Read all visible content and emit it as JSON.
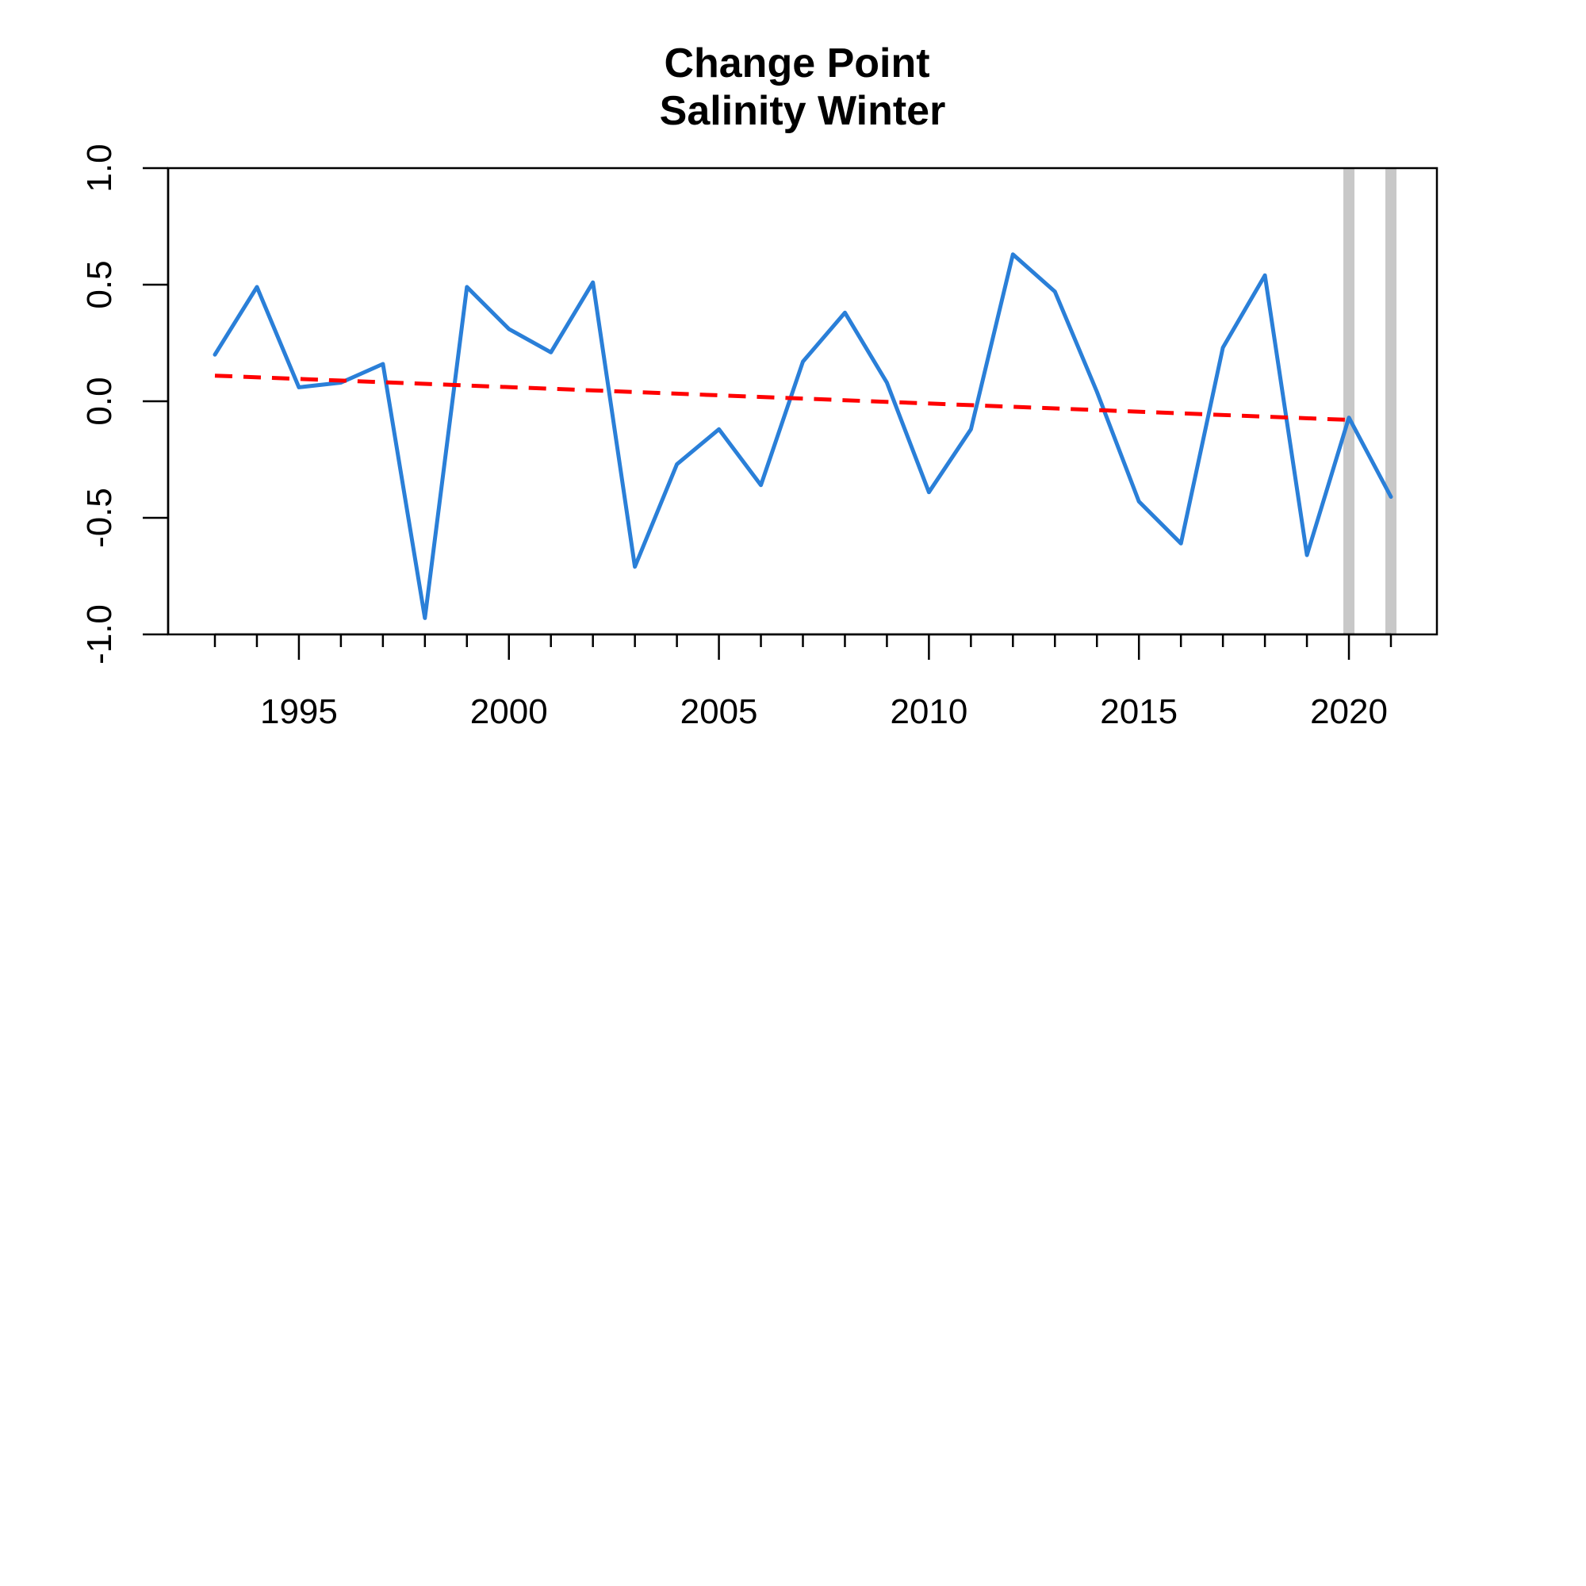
{
  "chart_data": {
    "type": "line",
    "title": "Change Point",
    "subtitle": "Salinity Winter",
    "xlabel": "",
    "ylabel": "",
    "xlim": [
      1992,
      2022.2
    ],
    "ylim": [
      -1.0,
      1.0
    ],
    "x_ticks": [
      1993,
      1994,
      1995,
      1996,
      1997,
      1998,
      1999,
      2000,
      2001,
      2002,
      2003,
      2004,
      2005,
      2006,
      2007,
      2008,
      2009,
      2010,
      2011,
      2012,
      2013,
      2014,
      2015,
      2016,
      2017,
      2018,
      2019,
      2020,
      2021
    ],
    "x_tick_labels": [
      {
        "value": 1995,
        "label": "1995"
      },
      {
        "value": 2000,
        "label": "2000"
      },
      {
        "value": 2005,
        "label": "2005"
      },
      {
        "value": 2010,
        "label": "2010"
      },
      {
        "value": 2015,
        "label": "2015"
      },
      {
        "value": 2020,
        "label": "2020"
      }
    ],
    "y_tick_labels": [
      {
        "value": -1.0,
        "label": "-1.0"
      },
      {
        "value": -0.5,
        "label": "-0.5"
      },
      {
        "value": 0.0,
        "label": "0.0"
      },
      {
        "value": 0.5,
        "label": "0.5"
      },
      {
        "value": 1.0,
        "label": "1.0"
      }
    ],
    "grid": false,
    "series": [
      {
        "color": "#2a7fd8",
        "style": "solid",
        "x": [
          1993,
          1994,
          1995,
          1996,
          1997,
          1998,
          1999,
          2000,
          2001,
          2002,
          2003,
          2004,
          2005,
          2006,
          2007,
          2008,
          2009,
          2010,
          2011,
          2012,
          2013,
          2014,
          2015,
          2016,
          2017,
          2018,
          2019,
          2020,
          2021
        ],
        "values": [
          0.2,
          0.49,
          0.06,
          0.08,
          0.16,
          -0.93,
          0.49,
          0.31,
          0.21,
          0.51,
          -0.71,
          -0.27,
          -0.12,
          -0.36,
          0.17,
          0.38,
          0.08,
          -0.39,
          -0.12,
          0.63,
          0.47,
          0.04,
          -0.43,
          -0.61,
          0.23,
          0.54,
          -0.66,
          -0.07,
          -0.41
        ]
      },
      {
        "color": "#ff0000",
        "style": "dashed",
        "x": [
          1993,
          2020
        ],
        "values": [
          0.11,
          -0.08
        ]
      }
    ],
    "change_points": {
      "color": "#c8c8c8",
      "x": [
        2020,
        2021
      ]
    }
  }
}
